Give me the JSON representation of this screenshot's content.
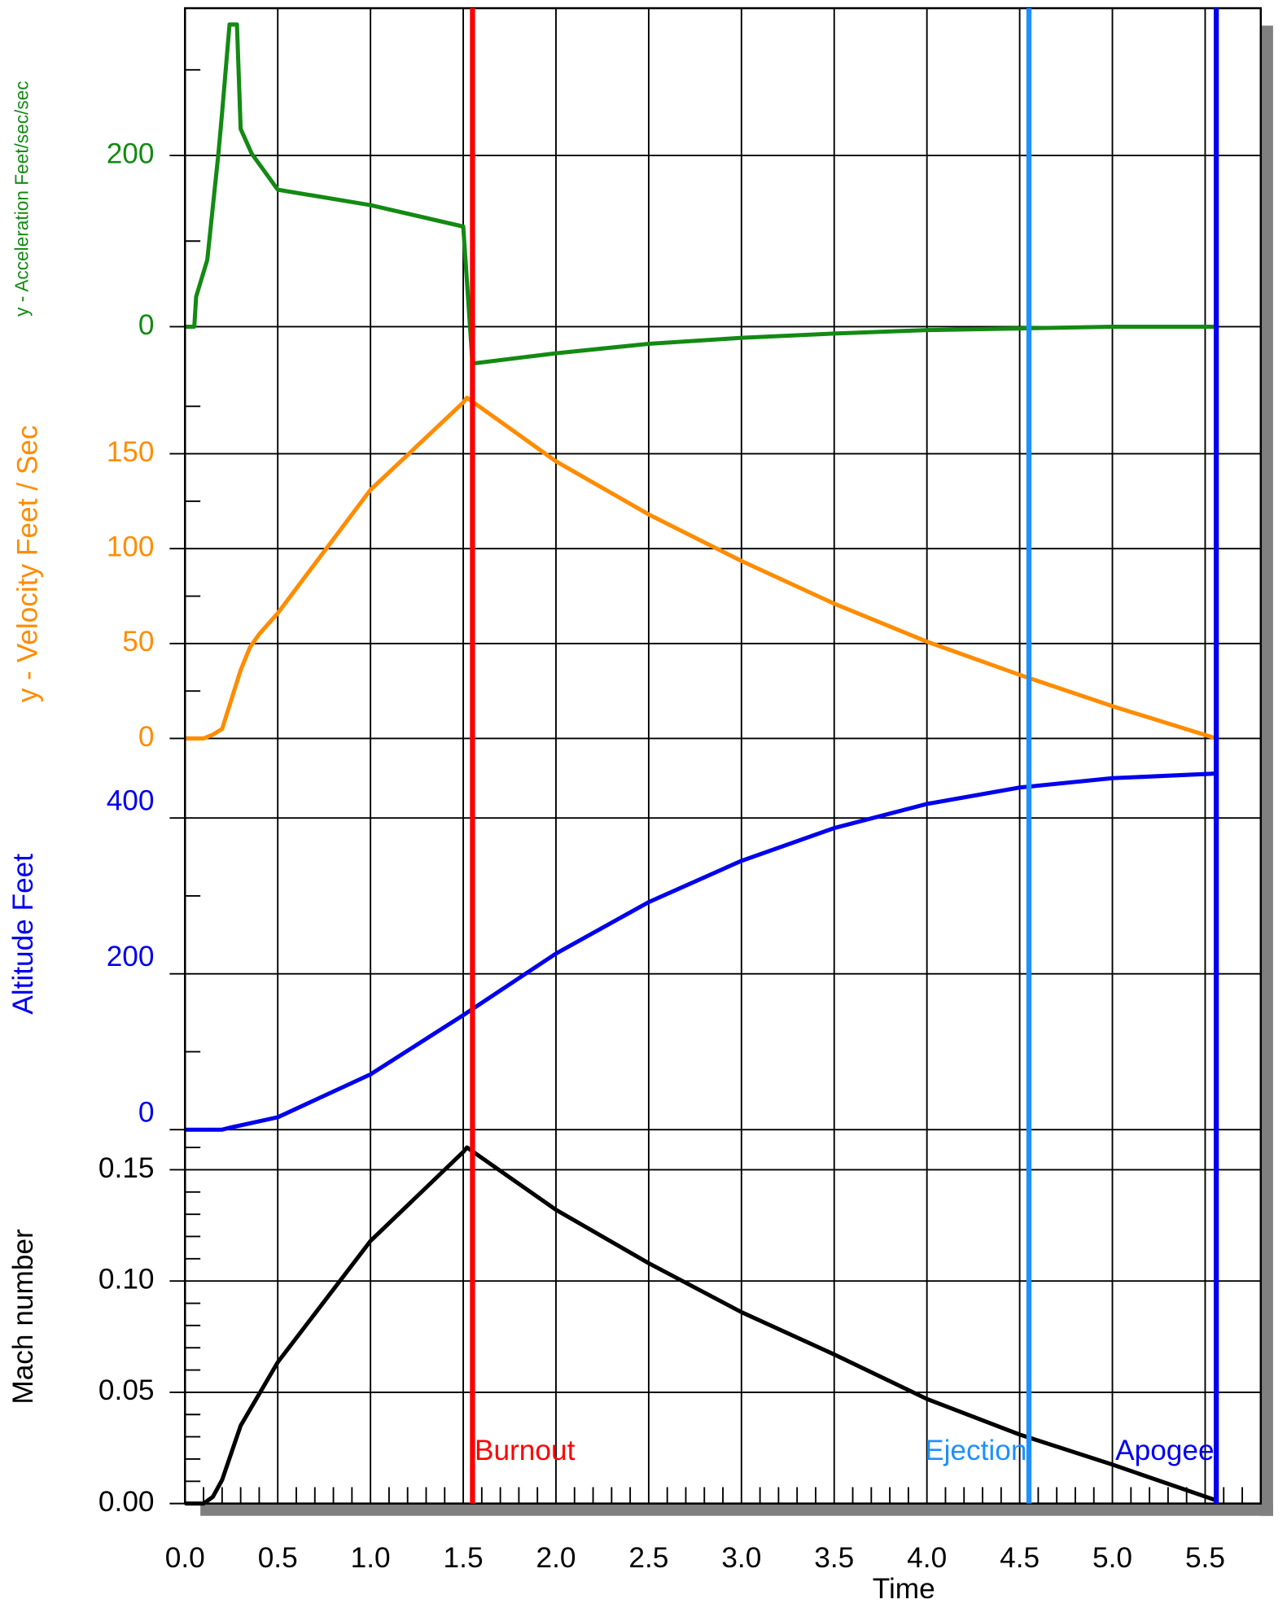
{
  "chart_data": [
    {
      "type": "line",
      "ylabel": "y - Acceleration Feet/sec/sec",
      "color": "#138a13",
      "ylim": [
        -73,
        372
      ],
      "yticks": [
        0,
        200
      ],
      "yminor": [
        100,
        300
      ],
      "x": [
        0,
        0.05,
        0.06,
        0.12,
        0.18,
        0.2,
        0.24,
        0.28,
        0.3,
        0.36,
        0.5,
        1.0,
        1.5,
        1.55,
        2.0,
        2.5,
        3.0,
        3.5,
        4.0,
        4.5,
        5.0,
        5.56
      ],
      "values": [
        0,
        0,
        35,
        78,
        202,
        250,
        353,
        353,
        231,
        202,
        160,
        142,
        117,
        -43,
        -31,
        -20,
        -13,
        -8,
        -4,
        -2,
        0,
        0
      ]
    },
    {
      "type": "line",
      "ylabel": "y - Velocity Feet / Sec",
      "color": "#ff8c00",
      "ylim": [
        0,
        184
      ],
      "yticks": [
        0,
        50,
        100,
        150
      ],
      "yminor": [
        25,
        75,
        125,
        175
      ],
      "x": [
        0,
        0.1,
        0.15,
        0.2,
        0.3,
        0.35,
        0.4,
        0.5,
        1.0,
        1.5,
        1.52,
        2.0,
        2.5,
        3.0,
        3.5,
        4.0,
        4.5,
        5.0,
        5.56
      ],
      "values": [
        0,
        0,
        2,
        5,
        36,
        48,
        55,
        66,
        131,
        177,
        179.5,
        146,
        118,
        93.5,
        71,
        51,
        33.5,
        17,
        0
      ]
    },
    {
      "type": "line",
      "ylabel": "Altitude Feet",
      "color": "#0000ee",
      "ylim": [
        0,
        502
      ],
      "yticks": [
        0,
        200,
        400
      ],
      "yminor": [
        100,
        300
      ],
      "x": [
        0,
        0.2,
        0.25,
        0.5,
        1.0,
        1.5,
        2.0,
        2.5,
        3.0,
        3.5,
        4.0,
        4.5,
        5.0,
        5.56
      ],
      "values": [
        0,
        0,
        3,
        16,
        71,
        147,
        226,
        292,
        345,
        387,
        418,
        439,
        451,
        457
      ]
    },
    {
      "type": "line",
      "ylabel": "Mach number",
      "color": "#000000",
      "ylim": [
        0,
        0.168
      ],
      "yticks": [
        {
          "value": 0,
          "label": "0.00"
        },
        0.05,
        {
          "value": 0.1,
          "label": "0.10"
        },
        0.15
      ],
      "yminor": [
        0.01,
        0.02,
        0.03,
        0.04,
        0.06,
        0.07,
        0.08,
        0.09,
        0.11,
        0.12,
        0.13,
        0.14,
        0.16
      ],
      "x": [
        0,
        0.1,
        0.15,
        0.2,
        0.3,
        0.5,
        1.0,
        1.5,
        1.52,
        2.0,
        2.5,
        3.0,
        3.5,
        4.0,
        4.5,
        5.0,
        5.56
      ],
      "values": [
        0,
        0,
        0.003,
        0.0106,
        0.035,
        0.0635,
        0.118,
        0.158,
        0.16,
        0.132,
        0.108,
        0.086,
        0.067,
        0.047,
        0.031,
        0.0175,
        0.0014
      ],
      "xlabel": "Time",
      "xlim": [
        0,
        5.8
      ],
      "xticks": [
        {
          "value": 0,
          "label": "0.0"
        },
        0.5,
        {
          "value": 1,
          "label": "1.0"
        },
        1.5,
        {
          "value": 2,
          "label": "2.0"
        },
        2.5,
        {
          "value": 3,
          "label": "3.0"
        },
        3.5,
        {
          "value": 4,
          "label": "4.0"
        },
        4.5,
        {
          "value": 5,
          "label": "5.0"
        },
        5.5
      ],
      "xminor": [
        0.1,
        0.2,
        0.3,
        0.4,
        0.6,
        0.7,
        0.8,
        0.9,
        1.1,
        1.2,
        1.3,
        1.4,
        1.6,
        1.7,
        1.8,
        1.9,
        2.1,
        2.2,
        2.3,
        2.4,
        2.6,
        2.7,
        2.8,
        2.9,
        3.1,
        3.2,
        3.3,
        3.4,
        3.6,
        3.7,
        3.8,
        3.9,
        4.1,
        4.2,
        4.3,
        4.4,
        4.6,
        4.7,
        4.8,
        4.9,
        5.1,
        5.2,
        5.3,
        5.4,
        5.6,
        5.7
      ],
      "annotations": [
        {
          "text": "Burnout",
          "x": 1.55,
          "color": "#ff0000",
          "side": "right"
        },
        {
          "text": "Ejection",
          "x": 4.55,
          "color": "#1e90ff",
          "side": "left"
        },
        {
          "text": "Apogee",
          "x": 5.56,
          "color": "#0000ee",
          "side": "left"
        }
      ]
    }
  ]
}
